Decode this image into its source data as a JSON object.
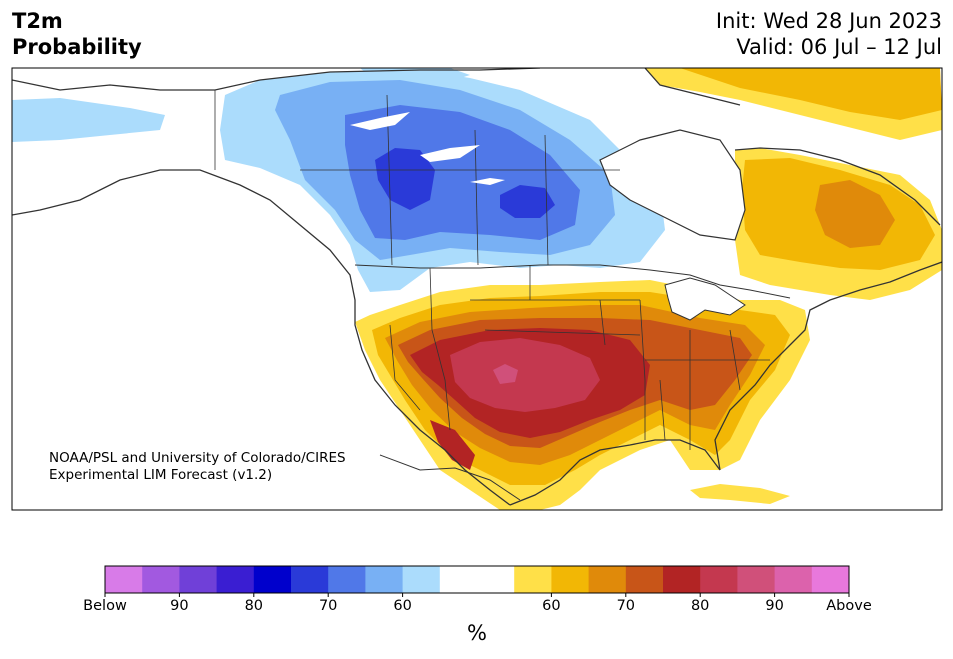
{
  "header": {
    "title_line1": "T2m",
    "title_line2": "Probability",
    "init": "Init: Wed 28 Jun 2023",
    "valid": "Valid: 06 Jul – 12 Jul"
  },
  "credit": {
    "line1": "NOAA/PSL and University of Colorado/CIRES",
    "line2": "Experimental LIM Forecast (v1.2)"
  },
  "colorbar": {
    "unit": "%",
    "colors": [
      "#d87be8",
      "#a259e0",
      "#7040d8",
      "#3a1ed2",
      "#0000cc",
      "#2a3ad8",
      "#5078e8",
      "#78b0f4",
      "#abdcfc",
      "#ffffff",
      "#ffffff",
      "#ffe048",
      "#f2b705",
      "#e08a0a",
      "#c85518",
      "#b22424",
      "#c4384f",
      "#d0507a",
      "#dc62ac",
      "#e878dc"
    ],
    "tick_labels": [
      "Below",
      "90",
      "80",
      "70",
      "60",
      "60",
      "70",
      "80",
      "90",
      "Above"
    ]
  },
  "legend": {
    "cold_colors": [
      "#abdcfc",
      "#78b0f4",
      "#5078e8",
      "#2a3ad8"
    ],
    "warm_colors": [
      "#ffe048",
      "#f2b705",
      "#e08a0a",
      "#c85518",
      "#b22424",
      "#c4384f",
      "#d0507a"
    ],
    "land_color": "#ffffff",
    "border_color": "#333333"
  }
}
